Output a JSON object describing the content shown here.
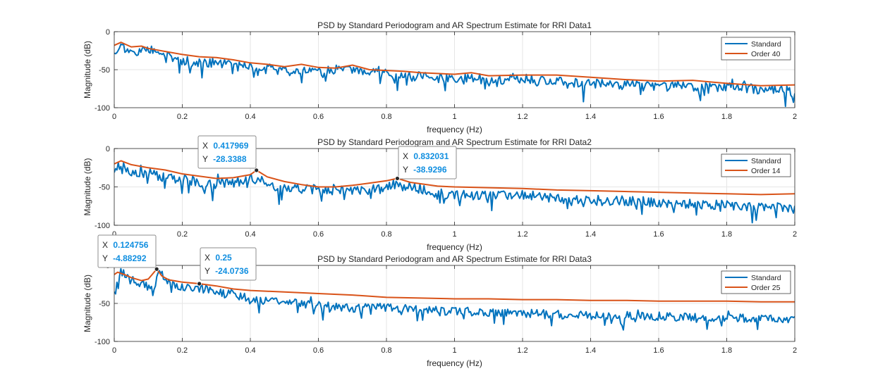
{
  "figure": {
    "background": "#ffffff",
    "axes_background": "#ffffff",
    "grid_color": "#e6e6e6",
    "axis_color": "#262626"
  },
  "colors": {
    "standard": "#0072bd",
    "ar": "#d95319",
    "datatip_value": "#0f8ee0"
  },
  "chart_data": [
    {
      "type": "line",
      "title": "PSD by Standard Periodogram and AR Spectrum Estimate for RRI Data1",
      "xlabel": "frequency (Hz)",
      "ylabel": "Magnitude (dB)",
      "xlim": [
        0,
        2
      ],
      "ylim": [
        -100,
        0
      ],
      "xticks": [
        0,
        0.2,
        0.4,
        0.6,
        0.8,
        1,
        1.2,
        1.4,
        1.6,
        1.8,
        2
      ],
      "xtick_labels": [
        "0",
        "0.2",
        "0.4",
        "0.6",
        "0.8",
        "1",
        "1.2",
        "1.4",
        "1.6",
        "1.8",
        "2"
      ],
      "yticks": [
        0,
        -50,
        -100
      ],
      "ytick_labels": [
        "0",
        "-50",
        "-100"
      ],
      "grid": true,
      "legend": "top-right",
      "series": [
        {
          "name": "Standard",
          "role": "standard",
          "x": [
            0,
            0.02,
            0.05,
            0.08,
            0.1,
            0.15,
            0.2,
            0.25,
            0.3,
            0.35,
            0.4,
            0.45,
            0.5,
            0.55,
            0.6,
            0.65,
            0.7,
            0.75,
            0.8,
            0.85,
            0.9,
            0.95,
            1.0,
            1.1,
            1.2,
            1.3,
            1.4,
            1.5,
            1.6,
            1.7,
            1.8,
            1.9,
            2.0
          ],
          "y": [
            -25,
            -18,
            -30,
            -22,
            -25,
            -32,
            -38,
            -42,
            -40,
            -46,
            -45,
            -50,
            -52,
            -50,
            -52,
            -50,
            -52,
            -55,
            -55,
            -60,
            -58,
            -62,
            -60,
            -65,
            -62,
            -66,
            -68,
            -70,
            -70,
            -72,
            -72,
            -76,
            -78
          ],
          "noise": 9,
          "seed": 11
        },
        {
          "name": "Order 40",
          "role": "ar",
          "x": [
            0,
            0.02,
            0.05,
            0.08,
            0.1,
            0.15,
            0.2,
            0.25,
            0.3,
            0.35,
            0.4,
            0.45,
            0.5,
            0.55,
            0.6,
            0.65,
            0.7,
            0.75,
            0.8,
            0.85,
            0.9,
            0.95,
            1.0,
            1.05,
            1.1,
            1.2,
            1.3,
            1.4,
            1.5,
            1.6,
            1.7,
            1.8,
            1.9,
            2.0
          ],
          "y": [
            -18,
            -14,
            -20,
            -19,
            -22,
            -26,
            -30,
            -33,
            -34,
            -37,
            -41,
            -43,
            -46,
            -43,
            -47,
            -48,
            -44,
            -50,
            -51,
            -52,
            -54,
            -55,
            -56,
            -54,
            -58,
            -57,
            -57,
            -60,
            -63,
            -65,
            -64,
            -68,
            -71,
            -70
          ]
        }
      ],
      "datatips": []
    },
    {
      "type": "line",
      "title": "PSD by Standard Periodogram and AR Spectrum Estimate for RRI Data2",
      "xlabel": "frequency (Hz)",
      "ylabel": "Magnitude (dB)",
      "xlim": [
        0,
        2
      ],
      "ylim": [
        -100,
        0
      ],
      "xticks": [
        0,
        0.2,
        0.4,
        0.6,
        0.8,
        1,
        1.2,
        1.4,
        1.6,
        1.8,
        2
      ],
      "xtick_labels": [
        "0",
        "0.2",
        "0.4",
        "0.6",
        "0.8",
        "1",
        "1.2",
        "1.4",
        "1.6",
        "1.8",
        "2"
      ],
      "yticks": [
        0,
        -50,
        -100
      ],
      "ytick_labels": [
        "0",
        "-50",
        "-100"
      ],
      "grid": true,
      "legend": "top-right",
      "series": [
        {
          "name": "Standard",
          "role": "standard",
          "x": [
            0,
            0.02,
            0.05,
            0.1,
            0.15,
            0.2,
            0.25,
            0.3,
            0.35,
            0.4,
            0.42,
            0.45,
            0.5,
            0.55,
            0.6,
            0.65,
            0.7,
            0.75,
            0.8,
            0.83,
            0.9,
            0.95,
            1.0,
            1.1,
            1.2,
            1.3,
            1.4,
            1.5,
            1.6,
            1.7,
            1.8,
            1.9,
            2.0
          ],
          "y": [
            -28,
            -20,
            -30,
            -32,
            -38,
            -40,
            -44,
            -46,
            -44,
            -42,
            -35,
            -48,
            -50,
            -52,
            -54,
            -52,
            -55,
            -55,
            -50,
            -48,
            -52,
            -58,
            -60,
            -62,
            -60,
            -65,
            -68,
            -68,
            -70,
            -72,
            -74,
            -76,
            -78
          ],
          "noise": 9,
          "seed": 23
        },
        {
          "name": "Order 14",
          "role": "ar",
          "x": [
            0,
            0.02,
            0.05,
            0.1,
            0.15,
            0.2,
            0.25,
            0.3,
            0.35,
            0.4,
            0.417969,
            0.45,
            0.5,
            0.55,
            0.6,
            0.65,
            0.7,
            0.75,
            0.8,
            0.832031,
            0.87,
            0.95,
            1.0,
            1.1,
            1.2,
            1.3,
            1.4,
            1.5,
            1.6,
            1.7,
            1.8,
            1.9,
            2.0
          ],
          "y": [
            -20,
            -16,
            -21,
            -25,
            -28,
            -33,
            -36,
            -39,
            -38,
            -34,
            -28.3388,
            -37,
            -43,
            -47,
            -50,
            -50,
            -48,
            -45,
            -42,
            -38.9296,
            -44,
            -49,
            -50,
            -51,
            -52,
            -54,
            -55,
            -56,
            -57,
            -58,
            -59,
            -60,
            -59
          ]
        }
      ],
      "datatips": [
        {
          "x_label": "X",
          "y_label": "Y",
          "x": 0.417969,
          "y": -28.3388,
          "x_text": "0.417969",
          "y_text": "-28.3388"
        },
        {
          "x_label": "X",
          "y_label": "Y",
          "x": 0.832031,
          "y": -38.9296,
          "x_text": "0.832031",
          "y_text": "-38.9296"
        }
      ]
    },
    {
      "type": "line",
      "title": "PSD by Standard Periodogram and AR Spectrum Estimate for RRI Data3",
      "xlabel": "frequency (Hz)",
      "ylabel": "Magnitude (dB)",
      "xlim": [
        0,
        2
      ],
      "ylim": [
        -100,
        0
      ],
      "xticks": [
        0,
        0.2,
        0.4,
        0.6,
        0.8,
        1,
        1.2,
        1.4,
        1.6,
        1.8,
        2
      ],
      "xtick_labels": [
        "0",
        "0.2",
        "0.4",
        "0.6",
        "0.8",
        "1",
        "1.2",
        "1.4",
        "1.6",
        "1.8",
        "2"
      ],
      "yticks": [
        0,
        -50,
        -100
      ],
      "ytick_labels": [
        "0",
        "-50",
        "-100"
      ],
      "grid": true,
      "legend": "top-right",
      "series": [
        {
          "name": "Standard",
          "role": "standard",
          "x": [
            0,
            0.02,
            0.05,
            0.08,
            0.1,
            0.12,
            0.13,
            0.15,
            0.2,
            0.25,
            0.3,
            0.35,
            0.4,
            0.45,
            0.5,
            0.55,
            0.6,
            0.7,
            0.8,
            0.9,
            1.0,
            1.1,
            1.2,
            1.3,
            1.4,
            1.5,
            1.6,
            1.7,
            1.8,
            1.9,
            2.0
          ],
          "y": [
            -32,
            -8,
            -18,
            -25,
            -28,
            -30,
            -6,
            -20,
            -28,
            -30,
            -34,
            -38,
            -44,
            -46,
            -48,
            -50,
            -52,
            -56,
            -55,
            -58,
            -60,
            -62,
            -63,
            -64,
            -66,
            -66,
            -67,
            -68,
            -68,
            -70,
            -70
          ],
          "noise": 8,
          "seed": 37
        },
        {
          "name": "Order 25",
          "role": "ar",
          "x": [
            0,
            0.01,
            0.03,
            0.05,
            0.08,
            0.1,
            0.124756,
            0.14,
            0.16,
            0.2,
            0.25,
            0.3,
            0.35,
            0.4,
            0.5,
            0.6,
            0.7,
            0.8,
            0.9,
            1.0,
            1.1,
            1.2,
            1.3,
            1.4,
            1.5,
            1.6,
            1.7,
            1.8,
            1.9,
            2.0
          ],
          "y": [
            -12,
            -9,
            -12,
            -16,
            -20,
            -18,
            -4.88292,
            -14,
            -19,
            -22,
            -24.0736,
            -27,
            -31,
            -33,
            -35,
            -37,
            -39,
            -42,
            -43,
            -44,
            -44,
            -45,
            -45,
            -46,
            -46,
            -47,
            -47,
            -47,
            -48,
            -48
          ]
        }
      ],
      "datatips": [
        {
          "x_label": "X",
          "y_label": "Y",
          "x": 0.124756,
          "y": -4.88292,
          "x_text": "0.124756",
          "y_text": "-4.88292"
        },
        {
          "x_label": "X",
          "y_label": "Y",
          "x": 0.25,
          "y": -24.0736,
          "x_text": "0.25",
          "y_text": "-24.0736"
        }
      ]
    }
  ]
}
